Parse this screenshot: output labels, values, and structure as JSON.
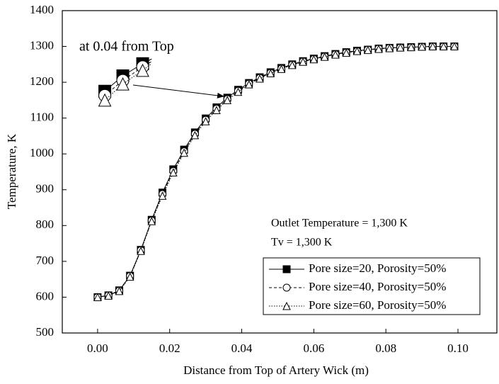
{
  "chart_data": {
    "type": "line",
    "x_label": "Distance from Top of Artery Wick (m)",
    "y_label": "Temperature, K",
    "annotations": [
      "at 0.04 from Top",
      "Outlet Temperature = 1,300 K",
      "Tv = 1,300 K"
    ],
    "xlim": [
      -0.0098,
      0.1108
    ],
    "ylim": [
      500,
      1400
    ],
    "xticks": [
      {
        "value": 0,
        "label": "0.00"
      },
      0.02,
      0.04,
      0.06,
      0.08,
      {
        "value": 0.1,
        "label": "0.10"
      }
    ],
    "yticks": [
      500,
      600,
      700,
      800,
      900,
      1000,
      1100,
      1200,
      1300,
      1400
    ],
    "legend": "bottom-right",
    "x": [
      0,
      0.003,
      0.006,
      0.009,
      0.012,
      0.015,
      0.018,
      0.021,
      0.024,
      0.027,
      0.03,
      0.033,
      0.036,
      0.039,
      0.042,
      0.045,
      0.048,
      0.051,
      0.054,
      0.057,
      0.06,
      0.063,
      0.066,
      0.069,
      0.072,
      0.075,
      0.078,
      0.081,
      0.084,
      0.087,
      0.09,
      0.093,
      0.096,
      0.099
    ],
    "series": [
      {
        "name": "Pore size=20, Porosity=50%",
        "color": "#000000",
        "dash": "solid",
        "marker": "square",
        "values": [
          600,
          605,
          619,
          660,
          732,
          816,
          892,
          957,
          1012,
          1060,
          1099,
          1130,
          1157,
          1179,
          1198,
          1214,
          1228,
          1240,
          1250,
          1259,
          1266,
          1273,
          1279,
          1284,
          1288,
          1291,
          1294,
          1296,
          1297,
          1298,
          1299,
          1300,
          1300,
          1300
        ]
      },
      {
        "name": "Pore size=40, Porosity=50%",
        "color": "#000000",
        "dash": "dashed",
        "marker": "circle",
        "values": [
          600,
          605,
          618,
          659,
          731,
          814,
          888,
          952,
          1007,
          1056,
          1095,
          1126,
          1153,
          1176,
          1196,
          1212,
          1226,
          1238,
          1249,
          1258,
          1265,
          1272,
          1278,
          1283,
          1287,
          1291,
          1294,
          1296,
          1297,
          1298,
          1299,
          1300,
          1300,
          1300
        ]
      },
      {
        "name": "Pore size=60, Porosity=50%",
        "color": "#000000",
        "dash": "dotted",
        "marker": "triangle",
        "values": [
          600,
          604,
          617,
          657,
          729,
          812,
          883,
          948,
          1003,
          1052,
          1091,
          1122,
          1150,
          1173,
          1194,
          1210,
          1225,
          1237,
          1248,
          1257,
          1264,
          1271,
          1277,
          1282,
          1287,
          1290,
          1293,
          1295,
          1297,
          1298,
          1299,
          1300,
          1300,
          1300
        ]
      }
    ],
    "inset": {
      "x": [
        0.002,
        0.007,
        0.0125,
        0.015
      ],
      "series": [
        [
          1175,
          1218,
          1252,
          1265
        ],
        [
          1163,
          1205,
          1243,
          1258
        ],
        [
          1150,
          1195,
          1233,
          1252
        ]
      ]
    }
  }
}
